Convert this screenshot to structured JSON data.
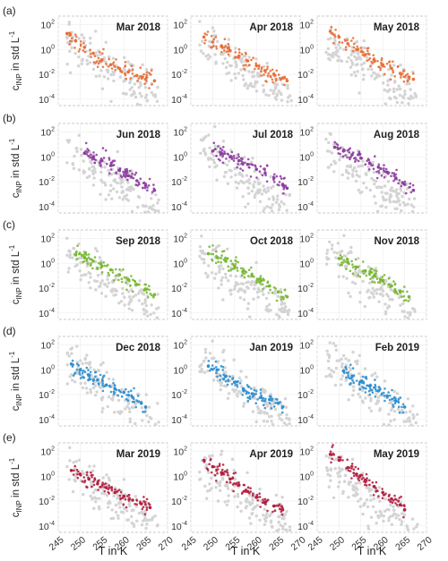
{
  "figure": {
    "ylabel": "c_INP in std L^-1",
    "xlabel": "T in K",
    "background_color": "#d4d4d4"
  },
  "chart_data": {
    "type": "scatter",
    "xlabel": "T in K",
    "ylabel": "c_INP in std L^-1",
    "xlim": [
      245,
      270
    ],
    "xticks": [
      245,
      250,
      255,
      260,
      265,
      270
    ],
    "ylim": [
      3e-05,
      500
    ],
    "yscale": "log",
    "yticks": [
      0.0001,
      0.01,
      1,
      100
    ],
    "ytick_labels": [
      "10^-4",
      "10^-2",
      "10^0",
      "10^2"
    ],
    "grid": true,
    "row_labels": [
      "(a)",
      "(b)",
      "(c)",
      "(d)",
      "(e)"
    ],
    "row_colors": [
      "#e8703a",
      "#8e3fa0",
      "#79b833",
      "#2f8fd0",
      "#b3203f"
    ],
    "panels": [
      {
        "title": "Mar 2018",
        "row": 0,
        "col": 0,
        "x": [
          247,
          249,
          251,
          253,
          255,
          257,
          259,
          261,
          263,
          265,
          267
        ],
        "y": [
          20,
          5,
          1.5,
          0.5,
          0.15,
          0.06,
          0.03,
          0.015,
          0.008,
          0.004,
          0.003
        ]
      },
      {
        "title": "Apr 2018",
        "row": 0,
        "col": 1,
        "x": [
          248,
          250,
          252,
          254,
          256,
          258,
          260,
          262,
          264,
          266,
          267
        ],
        "y": [
          10,
          4,
          2,
          0.8,
          0.3,
          0.12,
          0.05,
          0.02,
          0.01,
          0.005,
          0.003
        ]
      },
      {
        "title": "May 2018",
        "row": 0,
        "col": 2,
        "x": [
          248,
          250,
          252,
          254,
          256,
          258,
          260,
          262,
          264,
          266,
          267
        ],
        "y": [
          30,
          10,
          3,
          1,
          0.4,
          0.15,
          0.06,
          0.03,
          0.012,
          0.006,
          0.004
        ]
      },
      {
        "title": "Jun 2018",
        "row": 1,
        "col": 0,
        "x": [
          251,
          253,
          255,
          257,
          259,
          261,
          263,
          265,
          267
        ],
        "y": [
          2,
          1,
          0.5,
          0.2,
          0.08,
          0.03,
          0.012,
          0.005,
          0.002
        ]
      },
      {
        "title": "Jul 2018",
        "row": 1,
        "col": 1,
        "x": [
          250,
          252,
          254,
          256,
          258,
          260,
          262,
          264,
          266,
          267
        ],
        "y": [
          3,
          2,
          1,
          0.5,
          0.25,
          0.1,
          0.05,
          0.02,
          0.006,
          0.003
        ]
      },
      {
        "title": "Aug 2018",
        "row": 1,
        "col": 2,
        "x": [
          249,
          251,
          253,
          255,
          257,
          259,
          261,
          263,
          265,
          267
        ],
        "y": [
          6,
          3,
          1.5,
          0.8,
          0.3,
          0.15,
          0.06,
          0.02,
          0.006,
          0.002
        ]
      },
      {
        "title": "Sep 2018",
        "row": 2,
        "col": 0,
        "x": [
          249,
          251,
          253,
          255,
          257,
          259,
          261,
          263,
          265,
          267
        ],
        "y": [
          5,
          3,
          1.5,
          0.6,
          0.3,
          0.12,
          0.05,
          0.02,
          0.008,
          0.003
        ]
      },
      {
        "title": "Oct 2018",
        "row": 2,
        "col": 1,
        "x": [
          249,
          251,
          253,
          255,
          257,
          259,
          261,
          263,
          265,
          267
        ],
        "y": [
          6,
          3,
          1.5,
          0.6,
          0.25,
          0.1,
          0.04,
          0.015,
          0.005,
          0.002
        ]
      },
      {
        "title": "Nov 2018",
        "row": 2,
        "col": 2,
        "x": [
          250,
          252,
          254,
          256,
          258,
          260,
          262,
          264,
          266
        ],
        "y": [
          2.5,
          1.2,
          0.5,
          0.25,
          0.1,
          0.04,
          0.015,
          0.005,
          0.002
        ]
      },
      {
        "title": "Dec 2018",
        "row": 3,
        "col": 0,
        "x": [
          248,
          250,
          252,
          254,
          256,
          258,
          260,
          262,
          264,
          265
        ],
        "y": [
          3,
          1,
          0.4,
          0.15,
          0.06,
          0.03,
          0.015,
          0.006,
          0.002,
          0.001
        ]
      },
      {
        "title": "Jan 2019",
        "row": 3,
        "col": 1,
        "x": [
          249,
          251,
          253,
          255,
          257,
          259,
          261,
          263,
          265,
          266
        ],
        "y": [
          2,
          1,
          0.3,
          0.1,
          0.03,
          0.012,
          0.006,
          0.004,
          0.002,
          0.001
        ]
      },
      {
        "title": "Feb 2019",
        "row": 3,
        "col": 2,
        "x": [
          251,
          253,
          255,
          257,
          259,
          261,
          263,
          265
        ],
        "y": [
          0.8,
          0.3,
          0.12,
          0.05,
          0.02,
          0.008,
          0.003,
          0.001
        ]
      },
      {
        "title": "Mar 2019",
        "row": 4,
        "col": 0,
        "x": [
          248,
          250,
          252,
          254,
          256,
          258,
          260,
          262,
          264,
          266
        ],
        "y": [
          3,
          1.5,
          0.6,
          0.25,
          0.12,
          0.05,
          0.025,
          0.012,
          0.006,
          0.003
        ]
      },
      {
        "title": "Apr 2019",
        "row": 4,
        "col": 1,
        "x": [
          248,
          250,
          252,
          254,
          256,
          258,
          260,
          262,
          264,
          266
        ],
        "y": [
          20,
          6,
          2,
          0.6,
          0.2,
          0.06,
          0.02,
          0.008,
          0.004,
          0.002
        ]
      },
      {
        "title": "May 2019",
        "row": 4,
        "col": 2,
        "x": [
          248,
          250,
          252,
          254,
          256,
          258,
          260,
          262,
          264,
          265
        ],
        "y": [
          60,
          20,
          5,
          1.5,
          0.5,
          0.15,
          0.05,
          0.015,
          0.005,
          0.002
        ]
      }
    ]
  }
}
